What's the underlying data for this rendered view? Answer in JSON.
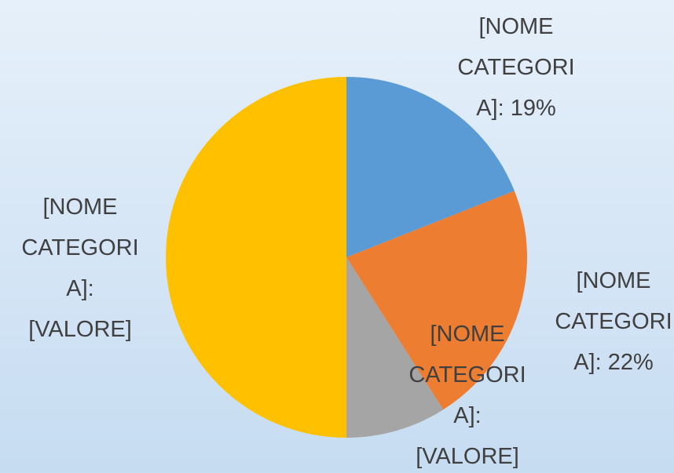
{
  "chart_data": {
    "type": "pie",
    "values": [
      19,
      22,
      9,
      50
    ],
    "value_labels": [
      "[NOME CATEGORIA]: 19%",
      "[NOME CATEGORIA]: 22%",
      "[NOME CATEGORIA]: [VALORE]",
      "[NOME CATEGORIA]: [VALORE]"
    ],
    "colors": [
      "#5b9bd5",
      "#ed7d31",
      "#a5a5a5",
      "#ffc000"
    ]
  }
}
